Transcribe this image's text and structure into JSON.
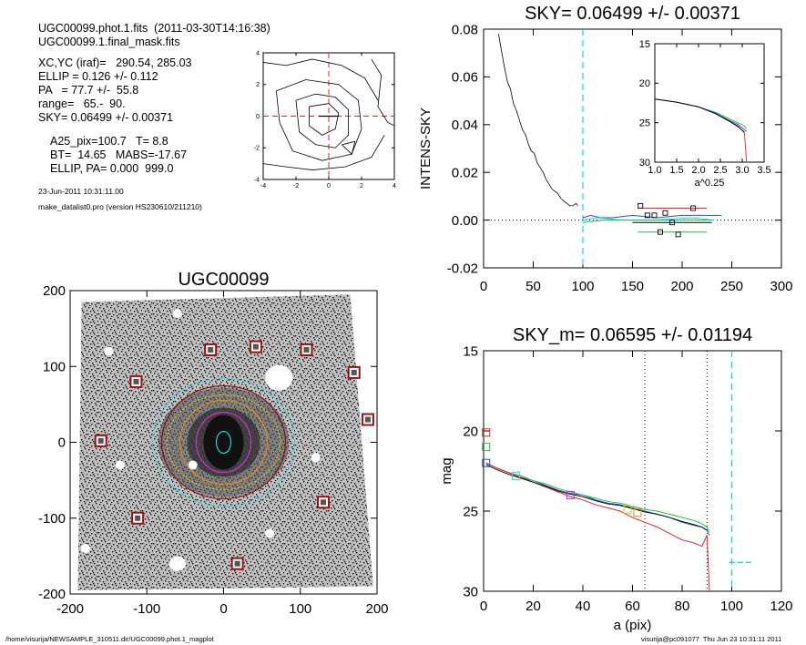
{
  "info": {
    "file_line": "UGC00099.phot.1.fits  (2011-03-30T14:16:38)",
    "mask_line": "UGC00099.1.final_mask.fits",
    "params": [
      "XC,YC (iraf)=   290.54, 285.03",
      "ELLIP = 0.126 +/- 0.112",
      "PA   = 77.7 +/-  55.8",
      "range=   65.-  90.",
      "SKY= 0.06499 +/- 0.00371"
    ],
    "params2": [
      "A25_pix=100.7   T= 8.8",
      "BT=  14.65   MABS=-17.67",
      "ELLIP, PA= 0.000  999.0"
    ],
    "date": "23-Jun-2011 10:31:11.00",
    "program": "make_datalist0.pro (version HS230610/211210)"
  },
  "footer": {
    "left": "/home/visurija/NEWSAMPLE_310511.dir/UGC00099.phot.1_magplot",
    "right": "visurija@pc091077  Thu Jun 23 10:31:11 2011"
  },
  "colors": {
    "red": "#e8202a",
    "green": "#22c43a",
    "blue": "#2050e0",
    "cyan": "#19d4e6",
    "magenta": "#d92ad9",
    "yellow": "#d6c21c",
    "orange": "#e88a12",
    "maroon": "#8a1010"
  },
  "chart_data": [
    {
      "id": "contour",
      "type": "contour",
      "xlim": [
        -4,
        4
      ],
      "ylim": [
        -4,
        4
      ],
      "x_ticks": [
        "-4",
        "-2",
        "0",
        "2",
        "4"
      ],
      "y_ticks": [
        "-4",
        "-2",
        "0",
        "2",
        "4"
      ]
    },
    {
      "id": "sky_profile",
      "type": "line",
      "title": "SKY= 0.06499 +/- 0.00371",
      "ylabel": "INTENS-SKY",
      "xlim": [
        0,
        300
      ],
      "ylim": [
        -0.02,
        0.08
      ],
      "x_ticks": [
        "0",
        "50",
        "100",
        "150",
        "200",
        "250",
        "300"
      ],
      "y_ticks": [
        "-0.02",
        "0.00",
        "0.02",
        "0.04",
        "0.06",
        "0.08"
      ],
      "profile_x": [
        15,
        18,
        21,
        24,
        27,
        30,
        33,
        36,
        39,
        42,
        45,
        48,
        51,
        54,
        57,
        60,
        63,
        66,
        69,
        72,
        75,
        78,
        81,
        84,
        87,
        90,
        93,
        95
      ],
      "profile_y": [
        0.078,
        0.071,
        0.064,
        0.058,
        0.055,
        0.049,
        0.046,
        0.042,
        0.038,
        0.036,
        0.032,
        0.029,
        0.028,
        0.024,
        0.022,
        0.02,
        0.017,
        0.015,
        0.013,
        0.012,
        0.011,
        0.009,
        0.008,
        0.007,
        0.006,
        0.006,
        0.007,
        0.006
      ],
      "sky_dashed_x": 100,
      "squares_x": [
        158,
        165,
        172,
        178,
        183,
        190,
        196,
        211
      ],
      "squares_y": [
        0.006,
        0.002,
        0.002,
        -0.005,
        0.003,
        -0.001,
        -0.006,
        0.005
      ],
      "inset": {
        "xlabel": "a^0.25",
        "xlim": [
          1.0,
          3.5
        ],
        "ylim": [
          15,
          30
        ],
        "x_ticks": [
          "1.0",
          "1.5",
          "2.0",
          "2.5",
          "3.0",
          "3.5"
        ],
        "y_ticks": [
          "15",
          "20",
          "25",
          "30"
        ]
      }
    },
    {
      "id": "image",
      "type": "image",
      "title": "UGC00099",
      "xlim": [
        -200,
        200
      ],
      "ylim": [
        -200,
        200
      ],
      "x_ticks": [
        "-200",
        "-100",
        "0",
        "100",
        "200"
      ],
      "y_ticks": [
        "200",
        "100",
        "0",
        "-100",
        "-200"
      ],
      "mask_boxes": [
        [
          -17,
          122
        ],
        [
          42,
          126
        ],
        [
          108,
          122
        ],
        [
          170,
          92
        ],
        [
          -114,
          80
        ],
        [
          188,
          30
        ],
        [
          -160,
          2
        ],
        [
          130,
          -79
        ],
        [
          -112,
          -100
        ],
        [
          18,
          -160
        ]
      ]
    },
    {
      "id": "mag_profile",
      "type": "line",
      "title": "SKY_m=  0.06595 +/- 0.01194",
      "xlabel": "a (pix)",
      "ylabel": "mag",
      "xlim": [
        0,
        120
      ],
      "ylim": [
        30,
        15
      ],
      "x_ticks": [
        "0",
        "20",
        "40",
        "60",
        "80",
        "100",
        "120"
      ],
      "y_ticks": [
        "15",
        "20",
        "25",
        "30"
      ],
      "range_lines": [
        65,
        90
      ],
      "sky_dashed_x": 100,
      "series": [
        {
          "color": "blue",
          "x": [
            1,
            5,
            10,
            15,
            20,
            25,
            30,
            35,
            40,
            45,
            50,
            55,
            60,
            65,
            70,
            75,
            80,
            85,
            88,
            90,
            91
          ],
          "y": [
            22.0,
            22.3,
            22.6,
            22.9,
            23.1,
            23.4,
            23.7,
            23.9,
            24.0,
            24.3,
            24.5,
            24.6,
            24.8,
            25.0,
            25.2,
            25.4,
            25.7,
            25.9,
            26.0,
            26.2,
            26.5
          ]
        },
        {
          "color": "green",
          "x": [
            1,
            5,
            10,
            15,
            20,
            25,
            30,
            35,
            40,
            45,
            50,
            55,
            60,
            65,
            70,
            75,
            80,
            85,
            88,
            90,
            91
          ],
          "y": [
            22.0,
            22.3,
            22.6,
            22.8,
            23.1,
            23.3,
            23.6,
            23.8,
            24.0,
            24.2,
            24.4,
            24.5,
            24.7,
            24.9,
            25.0,
            25.2,
            25.4,
            25.6,
            25.8,
            26.0,
            26.3
          ]
        },
        {
          "color": "red",
          "x": [
            1,
            5,
            10,
            15,
            20,
            25,
            30,
            35,
            40,
            45,
            50,
            55,
            60,
            65,
            70,
            75,
            80,
            85,
            88,
            90,
            91
          ],
          "y": [
            22.0,
            22.3,
            22.6,
            22.9,
            23.2,
            23.5,
            23.8,
            24.1,
            24.3,
            24.6,
            24.8,
            25.0,
            25.4,
            25.7,
            26.0,
            26.4,
            26.8,
            27.0,
            27.2,
            26.5,
            30.0
          ]
        }
      ],
      "markers": [
        {
          "color": "red",
          "x": 1,
          "y": 20.1
        },
        {
          "color": "green",
          "x": 1,
          "y": 21.0
        },
        {
          "color": "blue",
          "x": 1,
          "y": 22.0
        },
        {
          "color": "cyan",
          "x": 13,
          "y": 22.8
        },
        {
          "color": "magenta",
          "x": 35,
          "y": 24.0
        },
        {
          "color": "yellow",
          "x": 58,
          "y": 24.9
        },
        {
          "color": "orange",
          "x": 62,
          "y": 25.1
        }
      ],
      "sky_mag_segment": {
        "x": [
          99,
          108
        ],
        "y": 28.2
      }
    }
  ]
}
